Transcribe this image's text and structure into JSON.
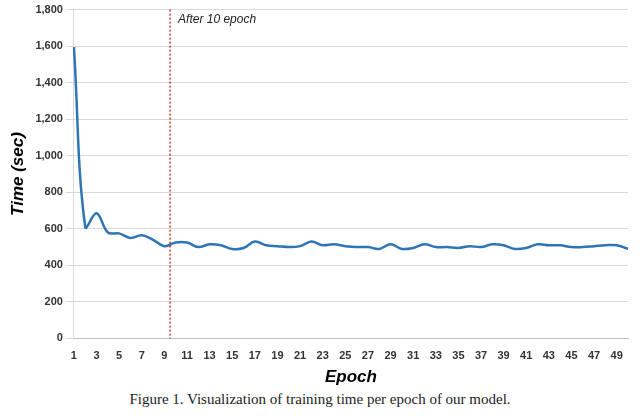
{
  "chart_data": {
    "type": "line",
    "caption": "Figure 1. Visualization of training time per epoch of our model.",
    "x_label": "Epoch",
    "y_label": "Time (sec)",
    "categories": [
      "1",
      null,
      "3",
      null,
      "5",
      null,
      "7",
      null,
      "9",
      null,
      "11",
      null,
      "13",
      null,
      "15",
      null,
      "17",
      null,
      "19",
      null,
      "21",
      null,
      "23",
      null,
      "25",
      null,
      "27",
      null,
      "29",
      null,
      "31",
      null,
      "33",
      null,
      "35",
      null,
      "37",
      null,
      "39",
      null,
      "41",
      null,
      "43",
      null,
      "45",
      null,
      "47",
      null,
      "49",
      null
    ],
    "values": [
      1595,
      610,
      685,
      580,
      575,
      550,
      565,
      540,
      505,
      525,
      525,
      500,
      515,
      510,
      490,
      495,
      530,
      510,
      505,
      500,
      505,
      530,
      510,
      515,
      505,
      500,
      500,
      490,
      515,
      490,
      495,
      515,
      500,
      500,
      495,
      505,
      500,
      515,
      510,
      490,
      495,
      515,
      510,
      510,
      500,
      500,
      505,
      510,
      510,
      490
    ],
    "color": "#2e75b6",
    "ylim": [
      0,
      1800
    ],
    "yticks": [
      0,
      200,
      400,
      600,
      800,
      1000,
      1200,
      1400,
      1600,
      1800
    ],
    "grid": true,
    "annotations": [
      {
        "text": "After 10 epoch",
        "x": 9.5,
        "color": "#c00000",
        "line_style": "dotted"
      }
    ]
  }
}
